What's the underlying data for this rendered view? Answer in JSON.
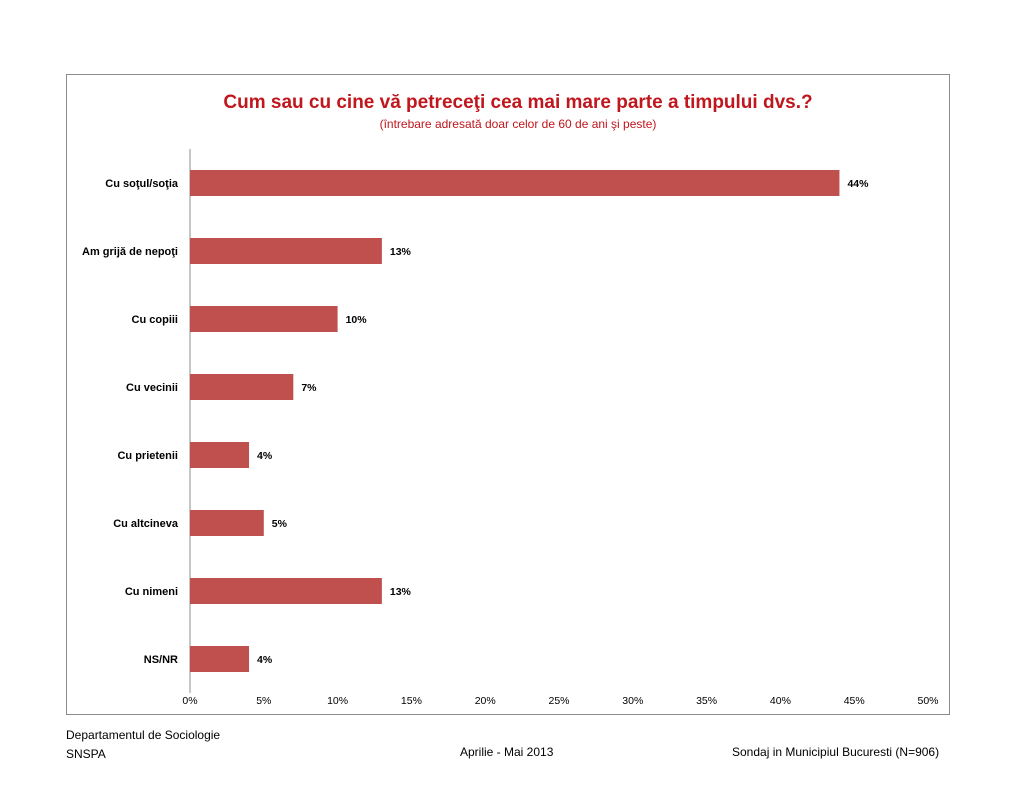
{
  "chart_data": {
    "type": "bar",
    "orientation": "horizontal",
    "title": "Cum sau cu cine vă petreceţi cea mai mare parte a timpului dvs.?",
    "subtitle": "(întrebare adresată  doar celor de 60 de ani şi peste)",
    "categories": [
      "Cu soţul/soţia",
      "Am grijă de nepoţi",
      "Cu copiii",
      "Cu vecinii",
      "Cu prietenii",
      "Cu altcineva",
      "Cu nimeni",
      "NS/NR"
    ],
    "values": [
      44,
      13,
      10,
      7,
      4,
      5,
      13,
      4
    ],
    "value_labels": [
      "44%",
      "13%",
      "10%",
      "7%",
      "4%",
      "5%",
      "13%",
      "4%"
    ],
    "x_ticks": [
      "0%",
      "5%",
      "10%",
      "15%",
      "20%",
      "25%",
      "30%",
      "35%",
      "40%",
      "45%",
      "50%"
    ],
    "xlim": [
      0,
      50
    ],
    "grid": false,
    "bar_color": "#c0504d"
  },
  "footer": {
    "dept_line1": "Departamentul de Sociologie",
    "dept_line2": "SNSPA",
    "period": "Aprilie - Mai 2013",
    "survey": "Sondaj in Municipiul Bucuresti (N=906)"
  }
}
